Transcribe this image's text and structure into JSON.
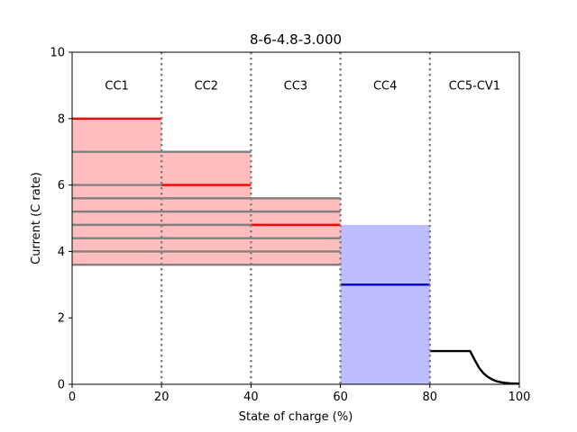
{
  "chart_data": {
    "type": "area",
    "title": "8-6-4.8-3.000",
    "xlabel": "State of charge (%)",
    "ylabel": "Current (C rate)",
    "xlim": [
      0,
      100
    ],
    "ylim": [
      0,
      10
    ],
    "xticks": [
      0,
      20,
      40,
      60,
      80,
      100
    ],
    "yticks": [
      0,
      2,
      4,
      6,
      8,
      10
    ],
    "grid": false,
    "region_labels": [
      {
        "label": "CC1",
        "x": 10
      },
      {
        "label": "CC2",
        "x": 30
      },
      {
        "label": "CC3",
        "x": 50
      },
      {
        "label": "CC4",
        "x": 70
      },
      {
        "label": "CC5-CV1",
        "x": 90
      }
    ],
    "boundaries": [
      20,
      40,
      60,
      80
    ],
    "shaded_regions": [
      {
        "x0": 0,
        "x1": 20,
        "y0": 3.6,
        "y1": 8,
        "color": "#ff9999"
      },
      {
        "x0": 20,
        "x1": 40,
        "y0": 3.6,
        "y1": 7,
        "color": "#ff9999"
      },
      {
        "x0": 40,
        "x1": 60,
        "y0": 3.6,
        "y1": 5.6,
        "color": "#ff9999"
      },
      {
        "x0": 60,
        "x1": 80,
        "y0": 0,
        "y1": 4.8,
        "color": "#9999ff"
      }
    ],
    "gray_levels": [
      {
        "x0": 0,
        "x1": 20,
        "values": [
          3.6,
          4.0,
          4.4,
          4.8,
          5.2,
          5.6,
          6.0,
          7.0
        ]
      },
      {
        "x0": 20,
        "x1": 40,
        "values": [
          3.6,
          4.0,
          4.4,
          4.8,
          5.2,
          5.6,
          7.0
        ]
      },
      {
        "x0": 40,
        "x1": 60,
        "values": [
          3.6,
          4.0,
          4.4,
          5.2,
          5.6
        ]
      }
    ],
    "selected_currents": [
      {
        "x0": 0,
        "x1": 20,
        "y": 8,
        "color": "#ff0000"
      },
      {
        "x0": 20,
        "x1": 40,
        "y": 6,
        "color": "#ff0000"
      },
      {
        "x0": 40,
        "x1": 60,
        "y": 4.8,
        "color": "#ff0000"
      },
      {
        "x0": 60,
        "x1": 80,
        "y": 3,
        "color": "#0000cc"
      }
    ],
    "cccv_series": {
      "x": [
        80,
        89,
        90,
        91,
        92,
        93,
        94,
        95,
        96,
        97,
        98,
        100
      ],
      "y": [
        1.0,
        1.0,
        0.74,
        0.5,
        0.33,
        0.22,
        0.14,
        0.09,
        0.06,
        0.04,
        0.03,
        0.02
      ],
      "color": "#000000"
    }
  }
}
